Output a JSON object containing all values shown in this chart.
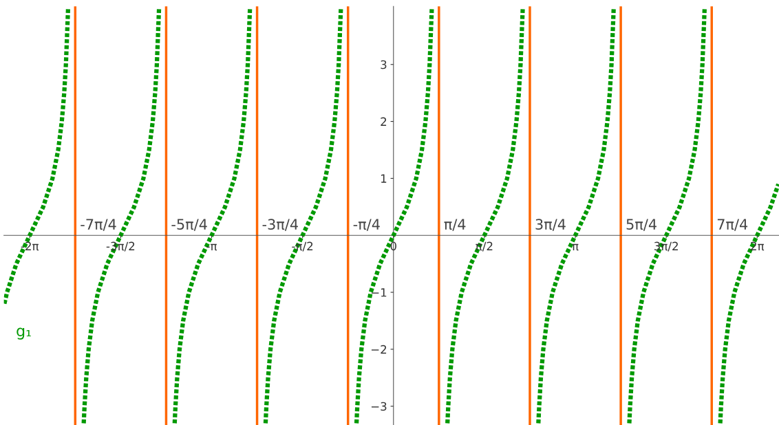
{
  "chart_data": {
    "type": "line",
    "xlim": [
      -6.73,
      6.66
    ],
    "ylim": [
      -3.33,
      4.02
    ],
    "xticks": [
      {
        "value": -6.2832,
        "label": "-2π"
      },
      {
        "value": -4.7124,
        "label": "-3π/2"
      },
      {
        "value": -3.1416,
        "label": "-π"
      },
      {
        "value": -1.5708,
        "label": "-π/2"
      },
      {
        "value": 0,
        "label": "0"
      },
      {
        "value": 1.5708,
        "label": "π/2"
      },
      {
        "value": 3.1416,
        "label": "π"
      },
      {
        "value": 4.7124,
        "label": "3π/2"
      },
      {
        "value": 6.2832,
        "label": "2π"
      }
    ],
    "yticks": [
      {
        "value": -3,
        "label": "−3"
      },
      {
        "value": -2,
        "label": "−2"
      },
      {
        "value": -1,
        "label": "−1"
      },
      1,
      2,
      3
    ],
    "grid": false,
    "legend": false,
    "line_style": "dotted",
    "marker": "none",
    "ref_lines": [
      {
        "axis": "x",
        "value": -5.4978,
        "label": "-7π/4",
        "color": "#ff6600"
      },
      {
        "axis": "x",
        "value": -3.927,
        "label": "-5π/4",
        "color": "#ff6600"
      },
      {
        "axis": "x",
        "value": -2.3562,
        "label": "-3π/4",
        "color": "#ff6600"
      },
      {
        "axis": "x",
        "value": -0.7854,
        "label": "-π/4",
        "color": "#ff6600"
      },
      {
        "axis": "x",
        "value": 0.7854,
        "label": "π/4",
        "color": "#ff6600"
      },
      {
        "axis": "x",
        "value": 2.3562,
        "label": "3π/4",
        "color": "#ff6600"
      },
      {
        "axis": "x",
        "value": 3.927,
        "label": "5π/4",
        "color": "#ff6600"
      },
      {
        "axis": "x",
        "value": 5.4978,
        "label": "7π/4",
        "color": "#ff6600"
      }
    ],
    "series": [
      {
        "name": "g₁",
        "color": "#009900",
        "x": [
          -6.7212,
          -6.6759,
          -6.515,
          -6.2832,
          -6.0514,
          -5.8905,
          -5.7918,
          -5.7296,
          -5.688,
          -5.6587,
          -5.6203,
          -5.4978,
          -5.3511,
          -5.3369,
          -5.3076,
          -5.266,
          -5.2038,
          -5.1051,
          -4.9442,
          -4.7124,
          -4.4806,
          -4.3197,
          -4.221,
          -4.1588,
          -4.1172,
          -4.0879,
          -4.0495,
          -3.927,
          -3.7803,
          -3.7661,
          -3.7368,
          -3.6952,
          -3.633,
          -3.5343,
          -3.3734,
          -3.1416,
          -2.9098,
          -2.7489,
          -2.6502,
          -2.588,
          -2.5464,
          -2.5171,
          -2.4787,
          -2.3562,
          -2.2095,
          -2.1953,
          -2.166,
          -2.1244,
          -2.0622,
          -1.9635,
          -1.8026,
          -1.5708,
          -1.339,
          -1.1781,
          -1.0794,
          -1.0172,
          -0.9756,
          -0.9463,
          -0.9079,
          -0.7854,
          -0.6387,
          -0.6245,
          -0.5952,
          -0.5536,
          -0.4914,
          -0.3927,
          -0.2318,
          0,
          0.2318,
          0.3927,
          0.4914,
          0.5536,
          0.5952,
          0.6245,
          0.6629,
          0.7854,
          0.9321,
          0.9463,
          0.9756,
          1.0172,
          1.0794,
          1.1781,
          1.339,
          1.5708,
          1.8026,
          1.9635,
          2.0622,
          2.1244,
          2.166,
          2.1953,
          2.2337,
          2.3562,
          2.5029,
          2.5171,
          2.5464,
          2.588,
          2.6502,
          2.7489,
          2.9098,
          3.1416,
          3.3734,
          3.5343,
          3.633,
          3.6952,
          3.7368,
          3.7661,
          3.8045,
          3.927,
          4.0737,
          4.0879,
          4.1172,
          4.1588,
          4.221,
          4.3197,
          4.4806,
          4.7124,
          4.9442,
          5.1051,
          5.2038,
          5.266,
          5.3076,
          5.3369,
          5.3753,
          5.4978,
          5.6445,
          5.6587,
          5.688,
          5.7296,
          5.7918,
          5.8905,
          6.0514,
          6.2832,
          6.515,
          6.6496
        ],
        "values": [
          -1.2,
          -1,
          -0.5,
          0,
          0.5,
          1,
          1.5,
          2,
          2.5,
          3,
          4,
          null,
          -3.3,
          -3,
          -2.5,
          -2,
          -1.5,
          -1,
          -0.5,
          0,
          0.5,
          1,
          1.5,
          2,
          2.5,
          3,
          4,
          null,
          -3.3,
          -3,
          -2.5,
          -2,
          -1.5,
          -1,
          -0.5,
          0,
          0.5,
          1,
          1.5,
          2,
          2.5,
          3,
          4,
          null,
          -3.3,
          -3,
          -2.5,
          -2,
          -1.5,
          -1,
          -0.5,
          0,
          0.5,
          1,
          1.5,
          2,
          2.5,
          3,
          4,
          null,
          -3.3,
          -3,
          -2.5,
          -2,
          -1.5,
          -1,
          -0.5,
          0,
          0.5,
          1,
          1.5,
          2,
          2.5,
          3,
          4,
          null,
          -3.3,
          -3,
          -2.5,
          -2,
          -1.5,
          -1,
          -0.5,
          0,
          0.5,
          1,
          1.5,
          2,
          2.5,
          3,
          4,
          null,
          -3.3,
          -3,
          -2.5,
          -2,
          -1.5,
          -1,
          -0.5,
          0,
          0.5,
          1,
          1.5,
          2,
          2.5,
          3,
          4,
          null,
          -3.3,
          -3,
          -2.5,
          -2,
          -1.5,
          -1,
          -0.5,
          0,
          0.5,
          1,
          1.5,
          2,
          2.5,
          3,
          4,
          null,
          -3.3,
          -3,
          -2.5,
          -2,
          -1.5,
          -1,
          -0.5,
          0,
          0.5,
          0.9
        ]
      }
    ]
  }
}
